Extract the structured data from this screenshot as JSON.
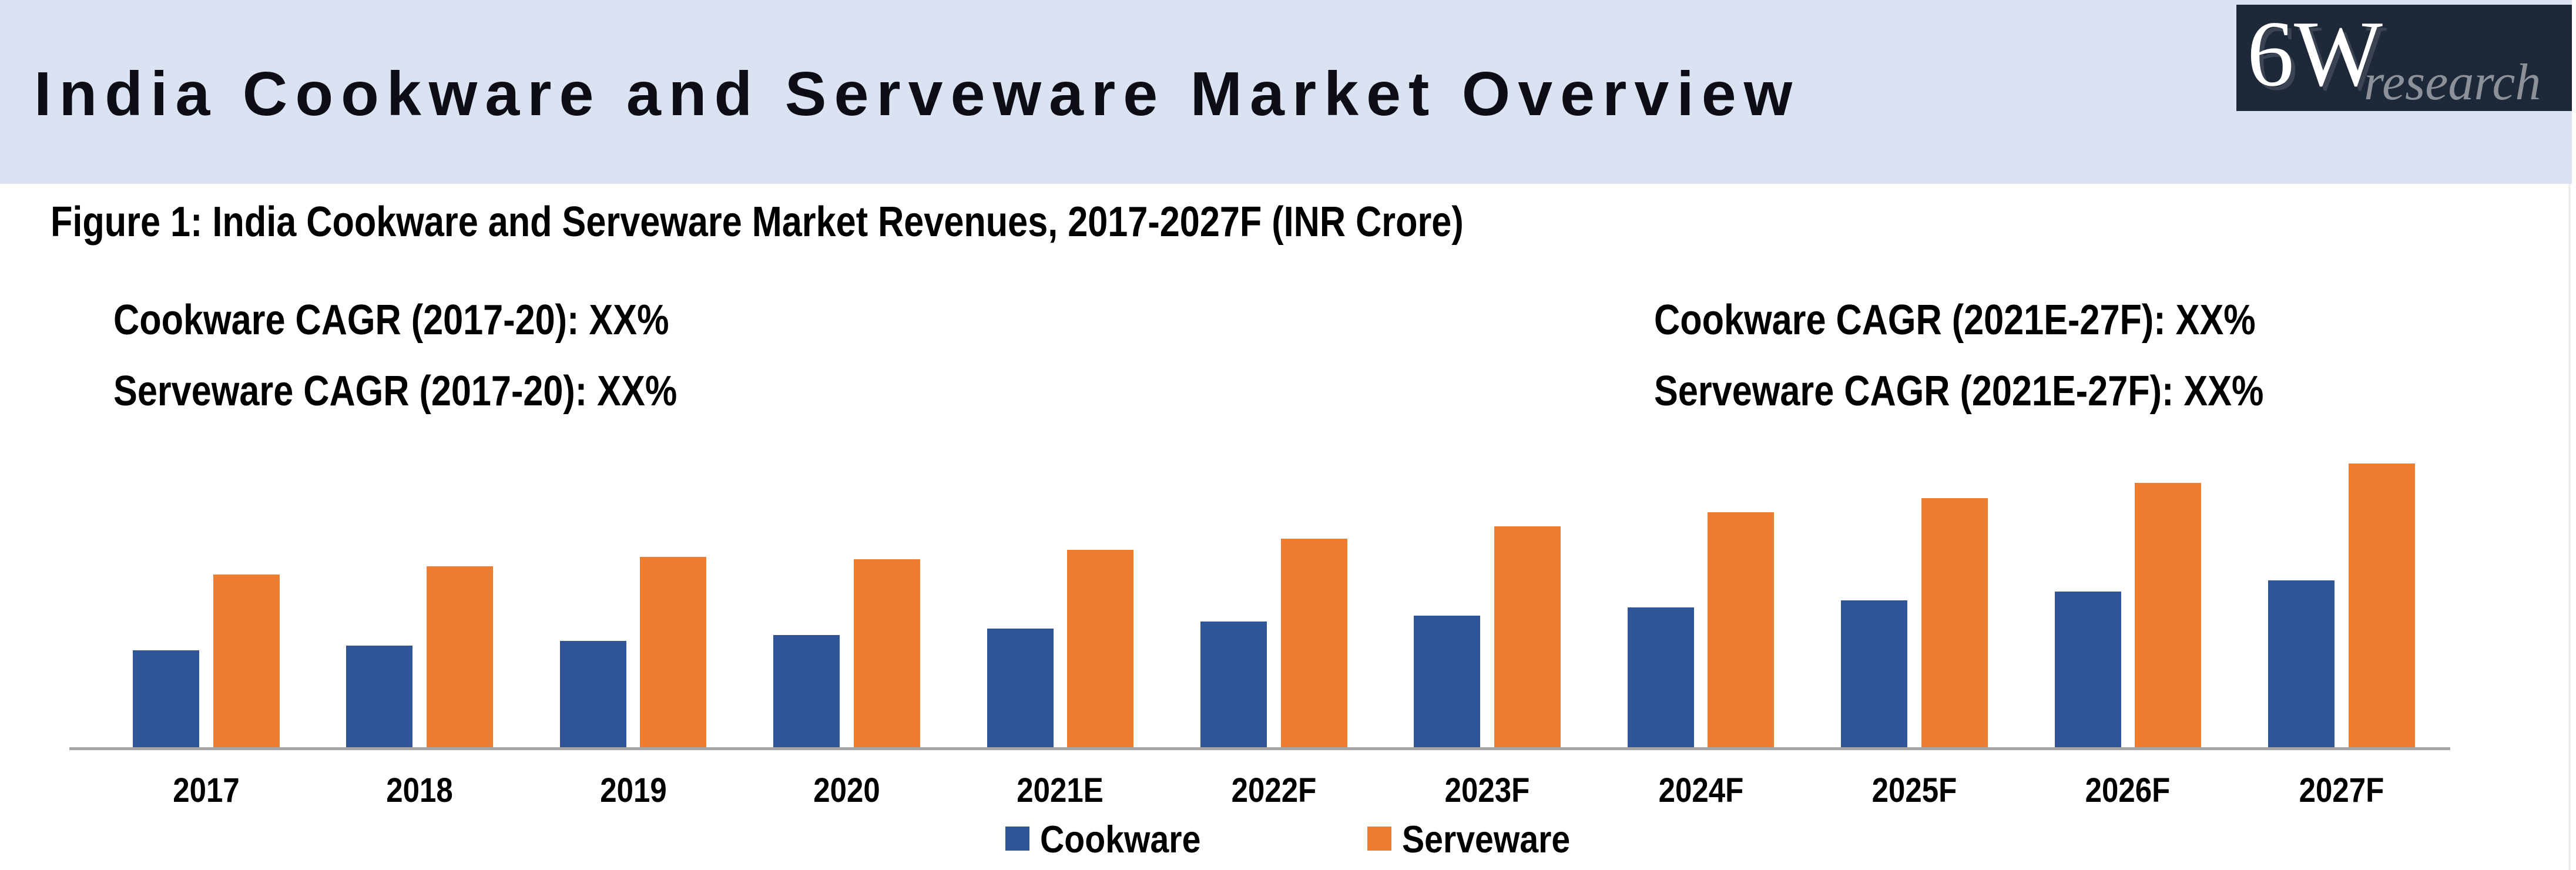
{
  "header": {
    "title": "India Cookware and Serveware Market Overview",
    "band_color": "#dbe3f3",
    "logo": {
      "part1": "6W",
      "part2": "research",
      "bg_color": "#1d2939"
    }
  },
  "figure": {
    "caption": "Figure 1: India Cookware and Serveware Market Revenues, 2017-2027F (INR Crore)"
  },
  "annotations": {
    "cookware_2017_20": "Cookware CAGR (2017-20): XX%",
    "serveware_2017_20": "Serveware CAGR (2017-20): XX%",
    "cookware_2021e_27f": "Cookware CAGR (2021E-27F): XX%",
    "serveware_2021e_27f": "Serveware CAGR (2021E-27F): XX%"
  },
  "chart_data": {
    "type": "bar",
    "title": "India Cookware and Serveware Market Revenues, 2017-2027F (INR Crore)",
    "xlabel": "",
    "ylabel": "",
    "value_axis_labels": "hidden (actual values masked, CAGR shown as XX%)",
    "units": "relative (estimated from bar heights)",
    "grid": false,
    "legend_position": "bottom-center",
    "categories": [
      "2017",
      "2018",
      "2019",
      "2020",
      "2021E",
      "2022F",
      "2023F",
      "2024F",
      "2025F",
      "2026F",
      "2027F"
    ],
    "series": [
      {
        "name": "Cookware",
        "color": "#2F5597",
        "values": [
          165,
          173,
          181,
          191,
          202,
          214,
          224,
          238,
          250,
          265,
          284
        ]
      },
      {
        "name": "Serveware",
        "color": "#ED7D31",
        "values": [
          294,
          308,
          324,
          320,
          336,
          355,
          376,
          400,
          424,
          450,
          483
        ]
      }
    ]
  },
  "legend": {
    "items": [
      {
        "label": "Cookware",
        "color": "#2F5597"
      },
      {
        "label": "Serveware",
        "color": "#ED7D31"
      }
    ]
  }
}
